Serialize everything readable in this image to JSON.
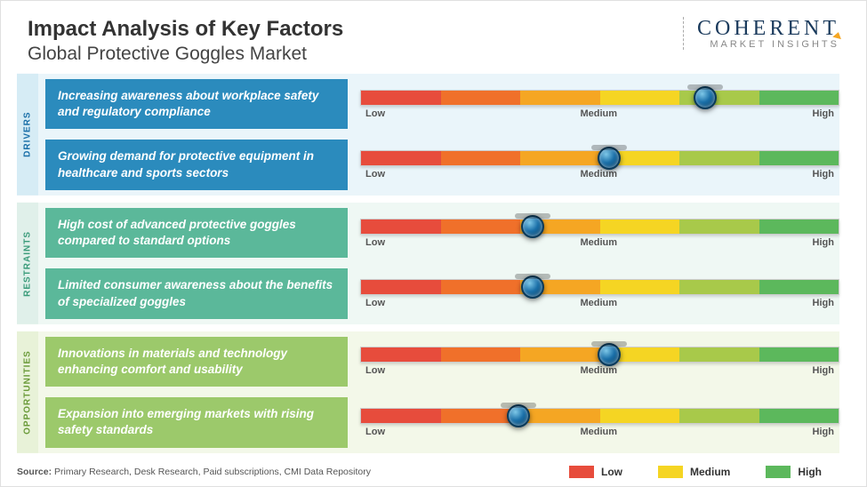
{
  "header": {
    "title": "Impact Analysis of Key Factors",
    "subtitle": "Global Protective Goggles Market",
    "title_fontsize": 24,
    "subtitle_fontsize": 21
  },
  "logo": {
    "main": "COHERENT",
    "sub": "MARKET INSIGHTS",
    "main_fontsize": 24,
    "color": "#1a3a5c"
  },
  "scale": {
    "labels": [
      "Low",
      "Medium",
      "High"
    ],
    "segments": [
      "#e74c3c",
      "#f0702a",
      "#f5a623",
      "#f5d523",
      "#a8c94a",
      "#5cb85c"
    ]
  },
  "categories": [
    {
      "name": "DRIVERS",
      "tab_bg": "#d6ecf5",
      "tab_color": "#1a6fa8",
      "body_bg": "#eaf5fa",
      "factor_bg": "#2b8bbd",
      "factors": [
        {
          "text": "Increasing awareness about workplace safety and regulatory compliance",
          "marker_pct": 72
        },
        {
          "text": "Growing demand for protective equipment in healthcare and sports sectors",
          "marker_pct": 52
        }
      ]
    },
    {
      "name": "RESTRAINTS",
      "tab_bg": "#e0f0ea",
      "tab_color": "#3a9b7a",
      "body_bg": "#eff8f4",
      "factor_bg": "#5bb89a",
      "factors": [
        {
          "text": "High cost of advanced protective goggles compared to standard options",
          "marker_pct": 36
        },
        {
          "text": "Limited consumer awareness about the benefits of specialized goggles",
          "marker_pct": 36
        }
      ]
    },
    {
      "name": "OPPORTUNITIES",
      "tab_bg": "#e8f2d8",
      "tab_color": "#6b9b3a",
      "body_bg": "#f3f8e9",
      "factor_bg": "#9cc96b",
      "factors": [
        {
          "text": "Innovations in materials and technology enhancing comfort and usability",
          "marker_pct": 52
        },
        {
          "text": "Expansion into emerging markets with rising safety standards",
          "marker_pct": 33
        }
      ]
    }
  ],
  "legend": [
    {
      "label": "Low",
      "color": "#e74c3c"
    },
    {
      "label": "Medium",
      "color": "#f5d523"
    },
    {
      "label": "High",
      "color": "#5cb85c"
    }
  ],
  "source": {
    "prefix": "Source:",
    "text": "Primary Research, Desk Research, Paid subscriptions, CMI Data Repository"
  }
}
